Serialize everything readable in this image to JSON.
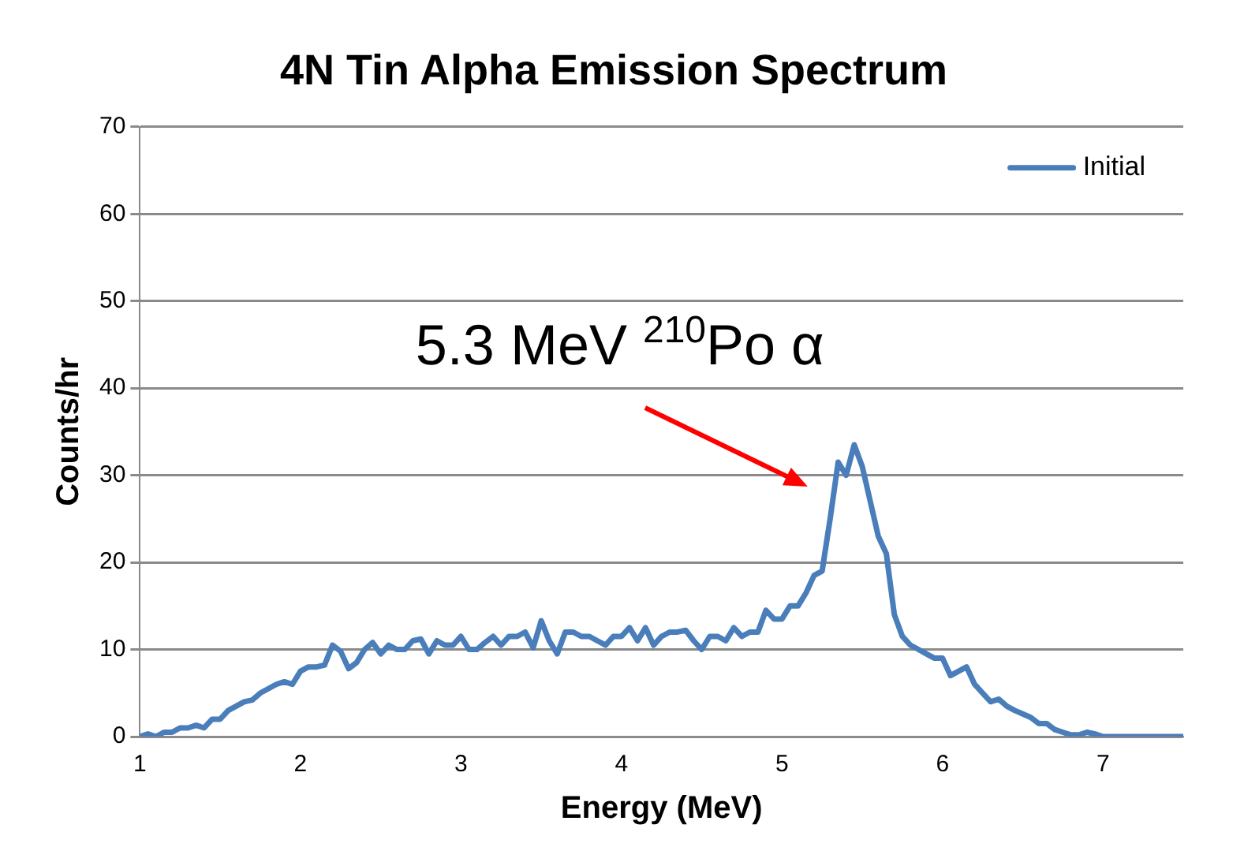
{
  "chart_data": {
    "type": "line",
    "title": "4N Tin Alpha Emission Spectrum",
    "xlabel": "Energy (MeV)",
    "ylabel": "Counts/hr",
    "x": [
      1.0,
      1.05,
      1.1,
      1.15,
      1.2,
      1.25,
      1.3,
      1.35,
      1.4,
      1.45,
      1.5,
      1.55,
      1.6,
      1.65,
      1.7,
      1.75,
      1.8,
      1.85,
      1.9,
      1.95,
      2.0,
      2.05,
      2.1,
      2.15,
      2.2,
      2.25,
      2.3,
      2.35,
      2.4,
      2.45,
      2.5,
      2.55,
      2.6,
      2.65,
      2.7,
      2.75,
      2.8,
      2.85,
      2.9,
      2.95,
      3.0,
      3.05,
      3.1,
      3.15,
      3.2,
      3.25,
      3.3,
      3.35,
      3.4,
      3.45,
      3.5,
      3.55,
      3.6,
      3.65,
      3.7,
      3.75,
      3.8,
      3.85,
      3.9,
      3.95,
      4.0,
      4.05,
      4.1,
      4.15,
      4.2,
      4.25,
      4.3,
      4.35,
      4.4,
      4.45,
      4.5,
      4.55,
      4.6,
      4.65,
      4.7,
      4.75,
      4.8,
      4.85,
      4.9,
      4.95,
      5.0,
      5.05,
      5.1,
      5.15,
      5.2,
      5.25,
      5.3,
      5.35,
      5.4,
      5.45,
      5.5,
      5.55,
      5.6,
      5.65,
      5.7,
      5.75,
      5.8,
      5.85,
      5.9,
      5.95,
      6.0,
      6.05,
      6.1,
      6.15,
      6.2,
      6.25,
      6.3,
      6.35,
      6.4,
      6.45,
      6.5,
      6.55,
      6.6,
      6.65,
      6.7,
      6.75,
      6.8,
      6.85,
      6.9,
      6.95,
      7.0,
      7.1,
      7.2,
      7.3,
      7.4,
      7.5
    ],
    "series": [
      {
        "name": "Initial",
        "color": "#4a7ebb",
        "values": [
          0,
          0.3,
          0,
          0.5,
          0.5,
          1,
          1,
          1.3,
          1,
          2,
          2,
          3,
          3.5,
          4,
          4.2,
          5,
          5.5,
          6,
          6.3,
          6,
          7.5,
          8,
          8,
          8.2,
          10.5,
          9.8,
          7.8,
          8.5,
          10,
          10.8,
          9.5,
          10.5,
          10,
          10,
          11,
          11.2,
          9.5,
          11,
          10.5,
          10.5,
          11.5,
          10,
          10,
          10.8,
          11.5,
          10.5,
          11.5,
          11.5,
          12,
          10.2,
          13.3,
          11,
          9.5,
          12,
          12,
          11.5,
          11.5,
          11,
          10.5,
          11.5,
          11.5,
          12.5,
          11,
          12.5,
          10.5,
          11.5,
          12,
          12,
          12.2,
          11,
          10,
          11.5,
          11.5,
          11,
          12.5,
          11.5,
          12,
          12,
          14.5,
          13.5,
          13.5,
          15,
          15,
          16.5,
          18.5,
          19,
          25,
          31.5,
          30,
          33.5,
          31,
          27,
          23,
          21,
          14,
          11.5,
          10.5,
          10,
          9.5,
          9,
          9,
          7,
          7.5,
          8,
          6,
          5,
          4,
          4.3,
          3.5,
          3,
          2.6,
          2.2,
          1.5,
          1.5,
          0.8,
          0.5,
          0.2,
          0.2,
          0.5,
          0.3,
          0,
          0,
          0,
          0,
          0,
          0
        ]
      }
    ],
    "xlim": [
      1,
      7.5
    ],
    "xticks": [
      1,
      2,
      3,
      4,
      5,
      6,
      7
    ],
    "ylim": [
      0,
      70
    ],
    "yticks": [
      0,
      10,
      20,
      30,
      40,
      50,
      60,
      70
    ],
    "grid": "y",
    "legend": "top right",
    "marker": "none",
    "line_style": "solid",
    "annotations": [
      "5.3 MeV $^{210}$Po α"
    ]
  }
}
